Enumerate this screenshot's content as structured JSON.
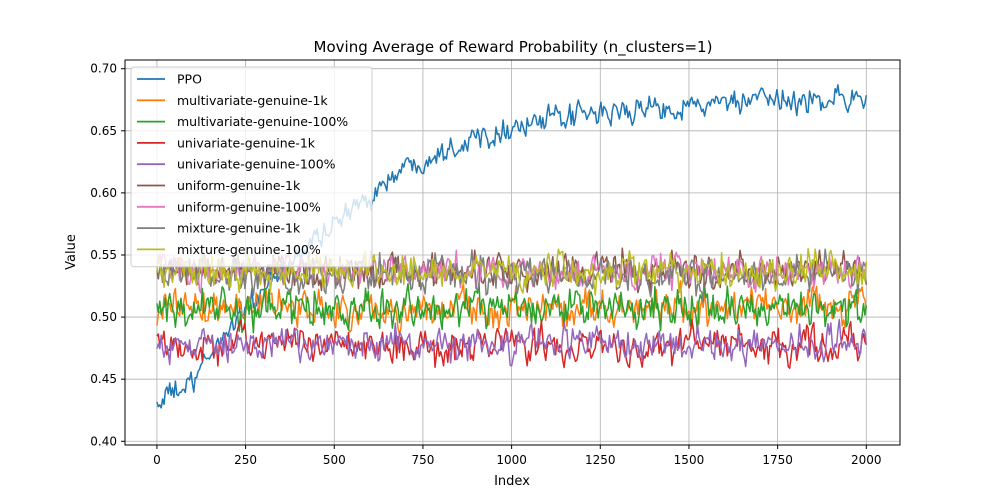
{
  "chart_data": {
    "type": "line",
    "title": "Moving Average of Reward Probability (n_clusters=1)",
    "xlabel": "Index",
    "ylabel": "Value",
    "xlim": [
      -90,
      2095
    ],
    "ylim": [
      0.397,
      0.707
    ],
    "xticks": [
      0,
      250,
      500,
      750,
      1000,
      1250,
      1500,
      1750,
      2000
    ],
    "yticks": [
      0.4,
      0.45,
      0.5,
      0.55,
      0.6,
      0.65,
      0.7
    ],
    "grid": true,
    "legend_position": "top-left",
    "x_range": [
      0,
      2000
    ],
    "series": [
      {
        "name": "PPO",
        "color": "#1f77b4",
        "x": [
          0,
          50,
          100,
          150,
          200,
          250,
          300,
          350,
          400,
          450,
          500,
          550,
          600,
          650,
          700,
          750,
          800,
          850,
          900,
          950,
          1000,
          1100,
          1200,
          1300,
          1400,
          1500,
          1600,
          1700,
          1800,
          1900,
          2000
        ],
        "y": [
          0.43,
          0.44,
          0.445,
          0.47,
          0.49,
          0.51,
          0.52,
          0.535,
          0.55,
          0.565,
          0.575,
          0.585,
          0.598,
          0.61,
          0.62,
          0.628,
          0.634,
          0.64,
          0.645,
          0.65,
          0.653,
          0.658,
          0.662,
          0.665,
          0.668,
          0.67,
          0.672,
          0.673,
          0.674,
          0.676,
          0.677
        ],
        "noise": 0.009
      },
      {
        "name": "multivariate-genuine-1k",
        "color": "#ff7f0e",
        "x": [
          0,
          2000
        ],
        "y": [
          0.507,
          0.507
        ],
        "noise": 0.014
      },
      {
        "name": "multivariate-genuine-100%",
        "color": "#2ca02c",
        "x": [
          0,
          2000
        ],
        "y": [
          0.507,
          0.507
        ],
        "noise": 0.014
      },
      {
        "name": "univariate-genuine-1k",
        "color": "#d62728",
        "x": [
          0,
          2000
        ],
        "y": [
          0.478,
          0.478
        ],
        "noise": 0.013
      },
      {
        "name": "univariate-genuine-100%",
        "color": "#9467bd",
        "x": [
          0,
          2000
        ],
        "y": [
          0.478,
          0.478
        ],
        "noise": 0.012
      },
      {
        "name": "uniform-genuine-1k",
        "color": "#8c564b",
        "x": [
          0,
          2000
        ],
        "y": [
          0.537,
          0.537
        ],
        "noise": 0.013
      },
      {
        "name": "uniform-genuine-100%",
        "color": "#e377c2",
        "x": [
          0,
          2000
        ],
        "y": [
          0.537,
          0.537
        ],
        "noise": 0.013
      },
      {
        "name": "mixture-genuine-1k",
        "color": "#7f7f7f",
        "x": [
          0,
          2000
        ],
        "y": [
          0.535,
          0.535
        ],
        "noise": 0.014
      },
      {
        "name": "mixture-genuine-100%",
        "color": "#bcbd22",
        "x": [
          0,
          2000
        ],
        "y": [
          0.537,
          0.537
        ],
        "noise": 0.013
      }
    ]
  }
}
